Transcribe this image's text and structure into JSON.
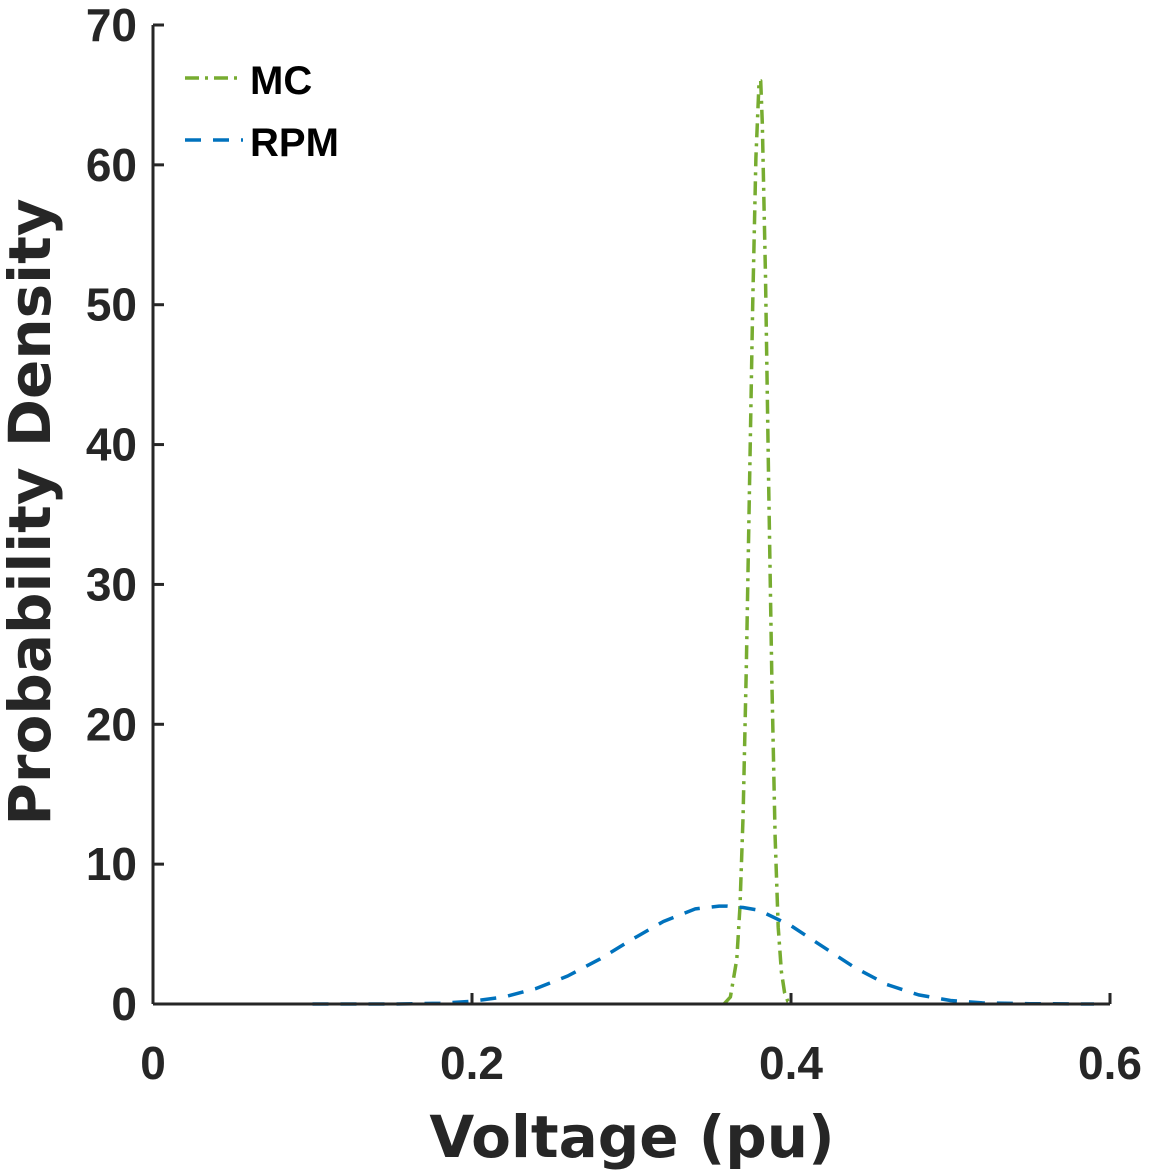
{
  "chart_data": {
    "type": "line",
    "title": "",
    "xlabel": "Voltage (pu)",
    "ylabel": "Probability Density",
    "xlim": [
      0,
      0.6
    ],
    "ylim": [
      0,
      70
    ],
    "x_ticks": [
      0,
      0.2,
      0.4,
      0.6
    ],
    "x_tick_labels": [
      "0",
      "0.2",
      "0.4",
      "0.6"
    ],
    "y_ticks": [
      0,
      10,
      20,
      30,
      40,
      50,
      60,
      70
    ],
    "y_tick_labels": [
      "0",
      "10",
      "20",
      "30",
      "40",
      "50",
      "60",
      "70"
    ],
    "grid": false,
    "legend_position": "top-left",
    "series": [
      {
        "name": "MC",
        "color": "#77AC30",
        "line_style": "dash-dot",
        "x": [
          0.358,
          0.362,
          0.366,
          0.368,
          0.37,
          0.372,
          0.374,
          0.376,
          0.378,
          0.38,
          0.381,
          0.382,
          0.384,
          0.386,
          0.388,
          0.39,
          0.392,
          0.394,
          0.396,
          0.398,
          0.401
        ],
        "y": [
          0,
          0.5,
          3.2,
          7,
          13.5,
          24,
          37,
          50,
          60.5,
          66,
          66,
          63,
          52,
          37,
          23,
          12,
          5.5,
          2.3,
          0.8,
          0.2,
          0
        ]
      },
      {
        "name": "RPM",
        "color": "#0072BD",
        "line_style": "dashed",
        "x": [
          0.1,
          0.15,
          0.18,
          0.2,
          0.22,
          0.24,
          0.26,
          0.28,
          0.3,
          0.32,
          0.34,
          0.355,
          0.36,
          0.37,
          0.38,
          0.4,
          0.42,
          0.44,
          0.46,
          0.48,
          0.5,
          0.52,
          0.55,
          0.59
        ],
        "y": [
          0,
          0,
          0.05,
          0.2,
          0.5,
          1.1,
          2.0,
          3.2,
          4.6,
          5.9,
          6.8,
          7.0,
          7.0,
          6.9,
          6.7,
          5.6,
          4.1,
          2.6,
          1.4,
          0.65,
          0.25,
          0.08,
          0.02,
          0
        ]
      }
    ]
  }
}
